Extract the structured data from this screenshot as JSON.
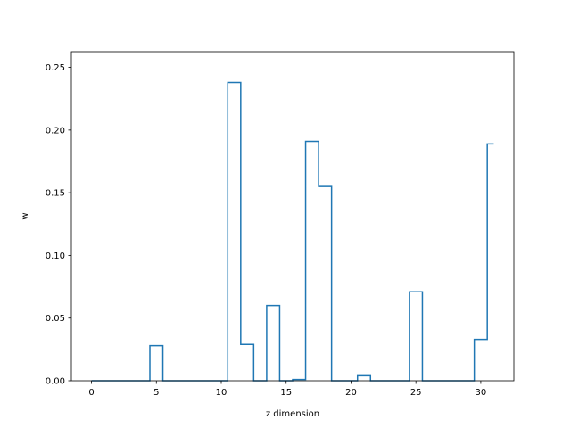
{
  "chart_data": {
    "type": "line",
    "drawstyle": "steps-mid",
    "title": "",
    "xlabel": "z dimension",
    "ylabel": "w",
    "xlim": [
      -1.55,
      32.55
    ],
    "ylim": [
      0.0,
      0.2625
    ],
    "xticks": [
      0,
      5,
      10,
      15,
      20,
      25,
      30
    ],
    "yticks": [
      "0.00",
      "0.05",
      "0.10",
      "0.15",
      "0.20",
      "0.25"
    ],
    "grid": false,
    "legend": false,
    "series": [
      {
        "color": "#1f77b4",
        "x": [
          0,
          1,
          2,
          3,
          4,
          5,
          6,
          7,
          8,
          9,
          10,
          11,
          12,
          13,
          14,
          15,
          16,
          17,
          18,
          19,
          20,
          21,
          22,
          23,
          24,
          25,
          26,
          27,
          28,
          29,
          30,
          31
        ],
        "y": [
          0,
          0,
          0,
          0,
          0,
          0.028,
          0,
          0,
          0,
          0,
          0,
          0.238,
          0.029,
          0,
          0.06,
          0,
          0.001,
          0.191,
          0.155,
          0,
          0,
          0.004,
          0,
          0,
          0,
          0.071,
          0,
          0,
          0,
          0,
          0.033,
          0.189
        ]
      }
    ]
  }
}
